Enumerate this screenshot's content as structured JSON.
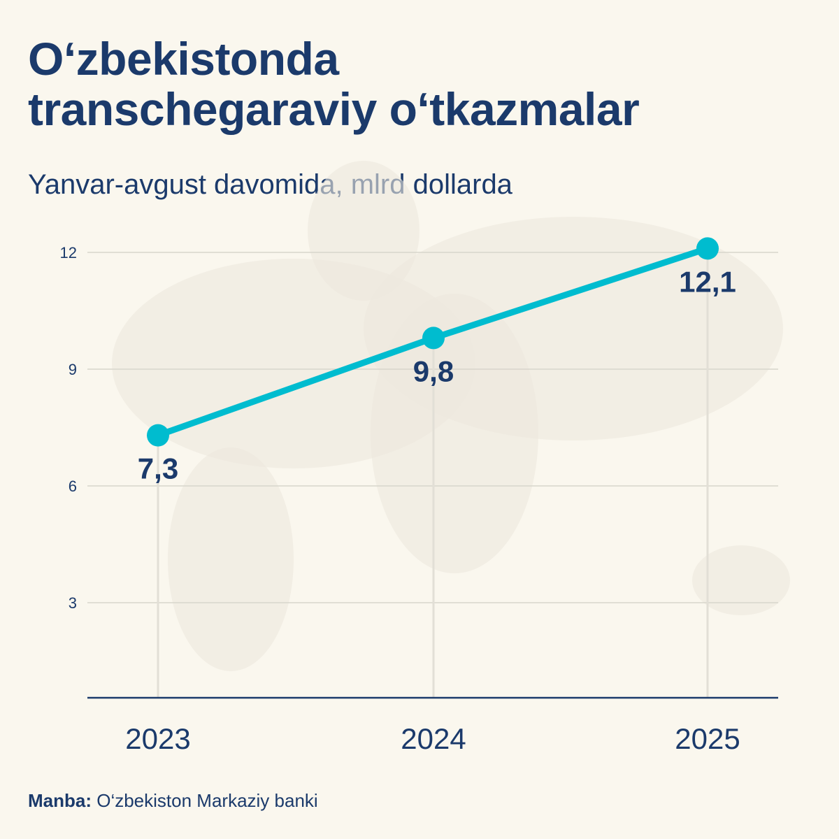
{
  "title_lines": [
    "O‘zbekistonda",
    "transchegaraviy o‘tkazmalar"
  ],
  "subtitle": "Yanvar-avgust davomida, mlrd dollarda",
  "source": {
    "label": "Manba:",
    "text": " O‘zbekiston Markaziy banki"
  },
  "colors": {
    "line": "#00bccf",
    "text": "#1b3a6b",
    "grid": "#d8d5cc",
    "background": "#faf7ee"
  },
  "chart_data": {
    "type": "line",
    "categories": [
      "2023",
      "2024",
      "2025"
    ],
    "values": [
      7.3,
      9.8,
      12.1
    ],
    "data_labels": [
      "7,3",
      "9,8",
      "12,1"
    ],
    "yticks": [
      3,
      6,
      9,
      12
    ],
    "ylim": [
      0,
      13
    ],
    "grid": true,
    "background": "faint world map"
  }
}
